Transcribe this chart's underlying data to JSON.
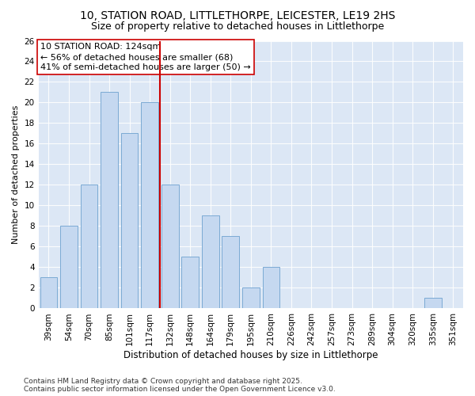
{
  "title1": "10, STATION ROAD, LITTLETHORPE, LEICESTER, LE19 2HS",
  "title2": "Size of property relative to detached houses in Littlethorpe",
  "xlabel": "Distribution of detached houses by size in Littlethorpe",
  "ylabel": "Number of detached properties",
  "categories": [
    "39sqm",
    "54sqm",
    "70sqm",
    "85sqm",
    "101sqm",
    "117sqm",
    "132sqm",
    "148sqm",
    "164sqm",
    "179sqm",
    "195sqm",
    "210sqm",
    "226sqm",
    "242sqm",
    "257sqm",
    "273sqm",
    "289sqm",
    "304sqm",
    "320sqm",
    "335sqm",
    "351sqm"
  ],
  "values": [
    3,
    8,
    12,
    21,
    17,
    20,
    12,
    5,
    9,
    7,
    2,
    4,
    0,
    0,
    0,
    0,
    0,
    0,
    0,
    1,
    0
  ],
  "bar_color": "#c5d8f0",
  "bar_edge_color": "#7baad4",
  "vline_x": 6.0,
  "vline_color": "#cc0000",
  "annotation_text": "10 STATION ROAD: 124sqm\n← 56% of detached houses are smaller (68)\n41% of semi-detached houses are larger (50) →",
  "annotation_box_color": "#ffffff",
  "annotation_box_edge": "#cc0000",
  "ylim": [
    0,
    26
  ],
  "yticks": [
    0,
    2,
    4,
    6,
    8,
    10,
    12,
    14,
    16,
    18,
    20,
    22,
    24,
    26
  ],
  "background_color": "#dce7f5",
  "fig_background_color": "#ffffff",
  "footer_text": "Contains HM Land Registry data © Crown copyright and database right 2025.\nContains public sector information licensed under the Open Government Licence v3.0.",
  "title1_fontsize": 10,
  "title2_fontsize": 9,
  "xlabel_fontsize": 8.5,
  "ylabel_fontsize": 8,
  "tick_fontsize": 7.5,
  "annotation_fontsize": 8,
  "footer_fontsize": 6.5
}
